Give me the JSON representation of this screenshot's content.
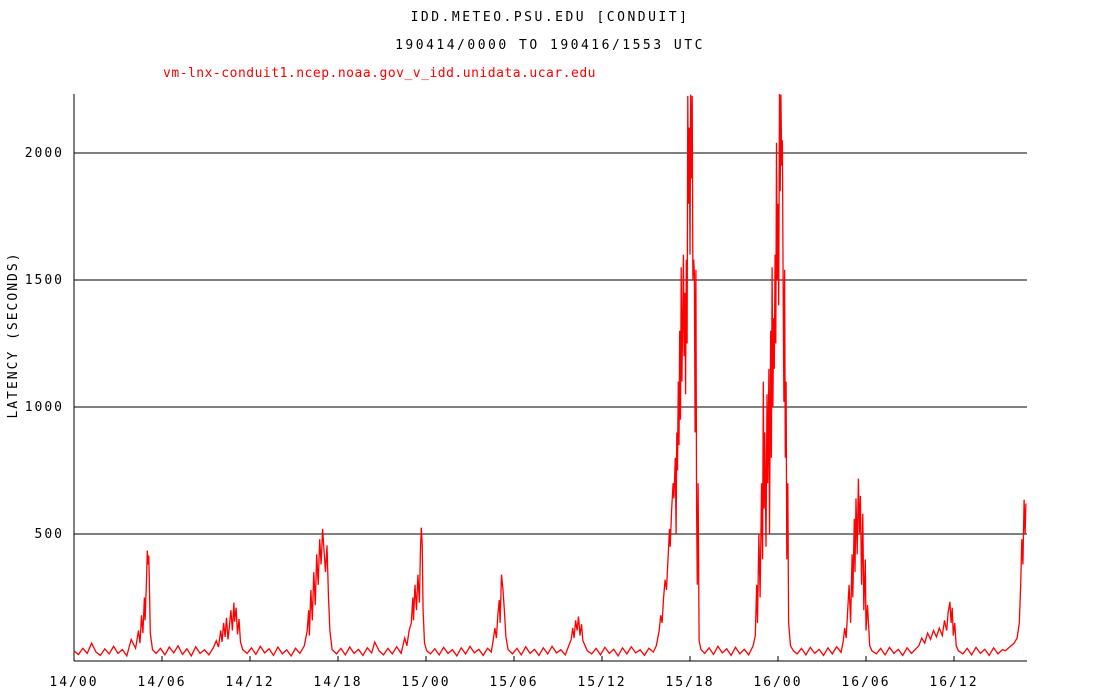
{
  "header": {
    "title": "IDD.METEO.PSU.EDU [CONDUIT]",
    "subtitle": "190414/0000 TO 190416/1553 UTC"
  },
  "legend": {
    "host_label": "vm-lnx-conduit1.ncep.noaa.gov_v_idd.unidata.ucar.edu",
    "color": "#ff0000"
  },
  "chart_data": {
    "type": "line",
    "title": "IDD.METEO.PSU.EDU [CONDUIT]",
    "subtitle": "190414/0000 TO 190416/1553 UTC",
    "series_name": "vm-lnx-conduit1.ncep.noaa.gov_v_idd.unidata.ucar.edu",
    "line_color": "#ff0000",
    "axis_color": "#000000",
    "background": "#ffffff",
    "xlabel": "",
    "ylabel": "LATENCY (SECONDS)",
    "grid": "horizontal",
    "legend_position": "top-left",
    "xlim_hours": [
      0,
      65
    ],
    "ylim": [
      0,
      2232
    ],
    "y_ticks": [
      500,
      1000,
      1500,
      2000
    ],
    "x_tick_hours": [
      0,
      6,
      12,
      18,
      24,
      30,
      36,
      42,
      48,
      54,
      60
    ],
    "x_tick_labels": [
      "14/00",
      "14/06",
      "14/12",
      "14/18",
      "15/00",
      "15/06",
      "15/12",
      "15/18",
      "16/00",
      "16/06",
      "16/12"
    ],
    "points": [
      [
        0,
        40
      ],
      [
        0.3,
        25
      ],
      [
        0.6,
        50
      ],
      [
        0.9,
        30
      ],
      [
        1.2,
        70
      ],
      [
        1.5,
        35
      ],
      [
        1.8,
        22
      ],
      [
        2.1,
        48
      ],
      [
        2.4,
        28
      ],
      [
        2.7,
        58
      ],
      [
        3.0,
        30
      ],
      [
        3.3,
        45
      ],
      [
        3.6,
        20
      ],
      [
        3.9,
        85
      ],
      [
        4.2,
        50
      ],
      [
        4.4,
        120
      ],
      [
        4.5,
        70
      ],
      [
        4.6,
        180
      ],
      [
        4.7,
        110
      ],
      [
        4.8,
        250
      ],
      [
        4.85,
        160
      ],
      [
        4.95,
        330
      ],
      [
        5.0,
        435
      ],
      [
        5.05,
        380
      ],
      [
        5.1,
        415
      ],
      [
        5.15,
        280
      ],
      [
        5.2,
        110
      ],
      [
        5.35,
        45
      ],
      [
        5.6,
        30
      ],
      [
        5.9,
        50
      ],
      [
        6.2,
        24
      ],
      [
        6.5,
        55
      ],
      [
        6.8,
        32
      ],
      [
        7.1,
        60
      ],
      [
        7.4,
        26
      ],
      [
        7.7,
        48
      ],
      [
        8.0,
        20
      ],
      [
        8.3,
        56
      ],
      [
        8.6,
        30
      ],
      [
        8.9,
        44
      ],
      [
        9.2,
        24
      ],
      [
        9.5,
        52
      ],
      [
        9.7,
        80
      ],
      [
        9.85,
        55
      ],
      [
        10.0,
        120
      ],
      [
        10.1,
        75
      ],
      [
        10.2,
        150
      ],
      [
        10.3,
        95
      ],
      [
        10.4,
        170
      ],
      [
        10.5,
        85
      ],
      [
        10.6,
        140
      ],
      [
        10.7,
        200
      ],
      [
        10.8,
        120
      ],
      [
        10.9,
        230
      ],
      [
        10.95,
        155
      ],
      [
        11.05,
        210
      ],
      [
        11.15,
        105
      ],
      [
        11.25,
        165
      ],
      [
        11.35,
        75
      ],
      [
        11.5,
        45
      ],
      [
        11.8,
        30
      ],
      [
        12.1,
        52
      ],
      [
        12.4,
        26
      ],
      [
        12.7,
        58
      ],
      [
        13.0,
        32
      ],
      [
        13.3,
        48
      ],
      [
        13.6,
        22
      ],
      [
        13.9,
        55
      ],
      [
        14.2,
        28
      ],
      [
        14.5,
        44
      ],
      [
        14.8,
        20
      ],
      [
        15.1,
        50
      ],
      [
        15.4,
        30
      ],
      [
        15.7,
        60
      ],
      [
        15.9,
        120
      ],
      [
        16.0,
        200
      ],
      [
        16.05,
        100
      ],
      [
        16.15,
        280
      ],
      [
        16.25,
        160
      ],
      [
        16.35,
        350
      ],
      [
        16.45,
        220
      ],
      [
        16.55,
        420
      ],
      [
        16.65,
        300
      ],
      [
        16.75,
        480
      ],
      [
        16.85,
        380
      ],
      [
        16.95,
        520
      ],
      [
        17.05,
        430
      ],
      [
        17.15,
        350
      ],
      [
        17.25,
        455
      ],
      [
        17.35,
        250
      ],
      [
        17.45,
        120
      ],
      [
        17.6,
        45
      ],
      [
        17.9,
        28
      ],
      [
        18.2,
        50
      ],
      [
        18.5,
        24
      ],
      [
        18.8,
        55
      ],
      [
        19.1,
        30
      ],
      [
        19.4,
        46
      ],
      [
        19.7,
        22
      ],
      [
        20.0,
        52
      ],
      [
        20.3,
        32
      ],
      [
        20.5,
        75
      ],
      [
        20.8,
        40
      ],
      [
        21.1,
        24
      ],
      [
        21.4,
        50
      ],
      [
        21.7,
        28
      ],
      [
        22.0,
        56
      ],
      [
        22.3,
        30
      ],
      [
        22.55,
        90
      ],
      [
        22.7,
        60
      ],
      [
        22.85,
        120
      ],
      [
        23.0,
        150
      ],
      [
        23.1,
        250
      ],
      [
        23.15,
        160
      ],
      [
        23.25,
        300
      ],
      [
        23.35,
        200
      ],
      [
        23.45,
        340
      ],
      [
        23.55,
        230
      ],
      [
        23.62,
        430
      ],
      [
        23.68,
        525
      ],
      [
        23.74,
        460
      ],
      [
        23.8,
        200
      ],
      [
        23.9,
        70
      ],
      [
        24.05,
        40
      ],
      [
        24.3,
        28
      ],
      [
        24.6,
        48
      ],
      [
        24.9,
        24
      ],
      [
        25.2,
        54
      ],
      [
        25.5,
        30
      ],
      [
        25.8,
        45
      ],
      [
        26.1,
        20
      ],
      [
        26.4,
        52
      ],
      [
        26.7,
        28
      ],
      [
        27.0,
        58
      ],
      [
        27.3,
        32
      ],
      [
        27.6,
        46
      ],
      [
        27.9,
        22
      ],
      [
        28.2,
        50
      ],
      [
        28.45,
        35
      ],
      [
        28.6,
        90
      ],
      [
        28.7,
        130
      ],
      [
        28.8,
        90
      ],
      [
        28.9,
        185
      ],
      [
        29.0,
        240
      ],
      [
        29.05,
        150
      ],
      [
        29.15,
        340
      ],
      [
        29.25,
        280
      ],
      [
        29.35,
        190
      ],
      [
        29.45,
        95
      ],
      [
        29.6,
        45
      ],
      [
        29.9,
        28
      ],
      [
        30.2,
        50
      ],
      [
        30.5,
        24
      ],
      [
        30.8,
        56
      ],
      [
        31.1,
        30
      ],
      [
        31.4,
        46
      ],
      [
        31.7,
        22
      ],
      [
        32.0,
        52
      ],
      [
        32.3,
        28
      ],
      [
        32.6,
        58
      ],
      [
        32.9,
        32
      ],
      [
        33.2,
        44
      ],
      [
        33.5,
        24
      ],
      [
        33.7,
        55
      ],
      [
        33.9,
        85
      ],
      [
        34.0,
        130
      ],
      [
        34.1,
        90
      ],
      [
        34.2,
        160
      ],
      [
        34.3,
        120
      ],
      [
        34.4,
        175
      ],
      [
        34.5,
        100
      ],
      [
        34.6,
        145
      ],
      [
        34.7,
        80
      ],
      [
        34.85,
        60
      ],
      [
        35.0,
        40
      ],
      [
        35.3,
        28
      ],
      [
        35.6,
        50
      ],
      [
        35.9,
        24
      ],
      [
        36.2,
        54
      ],
      [
        36.5,
        30
      ],
      [
        36.8,
        46
      ],
      [
        37.1,
        20
      ],
      [
        37.4,
        52
      ],
      [
        37.7,
        28
      ],
      [
        38.0,
        56
      ],
      [
        38.3,
        32
      ],
      [
        38.6,
        44
      ],
      [
        38.9,
        22
      ],
      [
        39.2,
        50
      ],
      [
        39.5,
        35
      ],
      [
        39.7,
        60
      ],
      [
        39.9,
        120
      ],
      [
        40.0,
        180
      ],
      [
        40.1,
        150
      ],
      [
        40.2,
        250
      ],
      [
        40.3,
        320
      ],
      [
        40.4,
        280
      ],
      [
        40.5,
        400
      ],
      [
        40.6,
        520
      ],
      [
        40.65,
        450
      ],
      [
        40.75,
        600
      ],
      [
        40.85,
        700
      ],
      [
        40.9,
        640
      ],
      [
        41.0,
        800
      ],
      [
        41.05,
        500
      ],
      [
        41.1,
        900
      ],
      [
        41.15,
        750
      ],
      [
        41.2,
        1100
      ],
      [
        41.25,
        850
      ],
      [
        41.3,
        1300
      ],
      [
        41.35,
        950
      ],
      [
        41.4,
        1550
      ],
      [
        41.45,
        1100
      ],
      [
        41.5,
        1350
      ],
      [
        41.55,
        1600
      ],
      [
        41.6,
        1200
      ],
      [
        41.65,
        1450
      ],
      [
        41.7,
        1050
      ],
      [
        41.75,
        1580
      ],
      [
        41.8,
        1250
      ],
      [
        41.85,
        2225
      ],
      [
        41.9,
        1800
      ],
      [
        41.95,
        2100
      ],
      [
        42.0,
        1600
      ],
      [
        42.05,
        2230
      ],
      [
        42.1,
        1900
      ],
      [
        42.15,
        2225
      ],
      [
        42.2,
        1500
      ],
      [
        42.25,
        1580
      ],
      [
        42.3,
        1520
      ],
      [
        42.35,
        900
      ],
      [
        42.4,
        1540
      ],
      [
        42.45,
        600
      ],
      [
        42.5,
        300
      ],
      [
        42.55,
        700
      ],
      [
        42.62,
        80
      ],
      [
        42.75,
        45
      ],
      [
        43.0,
        30
      ],
      [
        43.3,
        52
      ],
      [
        43.6,
        26
      ],
      [
        43.9,
        58
      ],
      [
        44.2,
        32
      ],
      [
        44.5,
        48
      ],
      [
        44.8,
        22
      ],
      [
        45.1,
        54
      ],
      [
        45.4,
        28
      ],
      [
        45.7,
        46
      ],
      [
        46.0,
        24
      ],
      [
        46.3,
        60
      ],
      [
        46.45,
        100
      ],
      [
        46.55,
        300
      ],
      [
        46.6,
        150
      ],
      [
        46.7,
        500
      ],
      [
        46.78,
        250
      ],
      [
        46.88,
        700
      ],
      [
        46.95,
        400
      ],
      [
        47.0,
        1100
      ],
      [
        47.05,
        600
      ],
      [
        47.1,
        900
      ],
      [
        47.18,
        450
      ],
      [
        47.25,
        1050
      ],
      [
        47.3,
        700
      ],
      [
        47.38,
        1150
      ],
      [
        47.42,
        500
      ],
      [
        47.5,
        1300
      ],
      [
        47.55,
        800
      ],
      [
        47.6,
        1550
      ],
      [
        47.65,
        1000
      ],
      [
        47.7,
        1350
      ],
      [
        47.75,
        1150
      ],
      [
        47.8,
        1600
      ],
      [
        47.85,
        1250
      ],
      [
        47.9,
        2040
      ],
      [
        47.95,
        1500
      ],
      [
        48.0,
        1800
      ],
      [
        48.05,
        1400
      ],
      [
        48.1,
        2235
      ],
      [
        48.15,
        1850
      ],
      [
        48.2,
        2230
      ],
      [
        48.25,
        1950
      ],
      [
        48.3,
        2050
      ],
      [
        48.35,
        1500
      ],
      [
        48.4,
        1020
      ],
      [
        48.45,
        1540
      ],
      [
        48.5,
        800
      ],
      [
        48.55,
        1100
      ],
      [
        48.6,
        400
      ],
      [
        48.67,
        700
      ],
      [
        48.72,
        150
      ],
      [
        48.85,
        60
      ],
      [
        49.05,
        40
      ],
      [
        49.3,
        28
      ],
      [
        49.6,
        50
      ],
      [
        49.9,
        24
      ],
      [
        50.2,
        54
      ],
      [
        50.5,
        30
      ],
      [
        50.8,
        46
      ],
      [
        51.1,
        22
      ],
      [
        51.4,
        52
      ],
      [
        51.7,
        28
      ],
      [
        52.0,
        56
      ],
      [
        52.3,
        34
      ],
      [
        52.45,
        80
      ],
      [
        52.55,
        130
      ],
      [
        52.65,
        90
      ],
      [
        52.75,
        200
      ],
      [
        52.85,
        300
      ],
      [
        52.95,
        150
      ],
      [
        53.05,
        420
      ],
      [
        53.1,
        250
      ],
      [
        53.2,
        560
      ],
      [
        53.25,
        350
      ],
      [
        53.32,
        640
      ],
      [
        53.4,
        420
      ],
      [
        53.48,
        718
      ],
      [
        53.55,
        500
      ],
      [
        53.62,
        650
      ],
      [
        53.7,
        300
      ],
      [
        53.78,
        580
      ],
      [
        53.85,
        200
      ],
      [
        53.95,
        400
      ],
      [
        54.0,
        120
      ],
      [
        54.1,
        220
      ],
      [
        54.25,
        60
      ],
      [
        54.4,
        40
      ],
      [
        54.7,
        28
      ],
      [
        55.0,
        50
      ],
      [
        55.3,
        24
      ],
      [
        55.6,
        54
      ],
      [
        55.9,
        30
      ],
      [
        56.2,
        46
      ],
      [
        56.5,
        22
      ],
      [
        56.8,
        52
      ],
      [
        57.1,
        30
      ],
      [
        57.4,
        48
      ],
      [
        57.6,
        60
      ],
      [
        57.8,
        90
      ],
      [
        58.0,
        70
      ],
      [
        58.2,
        110
      ],
      [
        58.4,
        85
      ],
      [
        58.6,
        120
      ],
      [
        58.8,
        95
      ],
      [
        59.0,
        130
      ],
      [
        59.2,
        100
      ],
      [
        59.35,
        160
      ],
      [
        59.5,
        120
      ],
      [
        59.6,
        190
      ],
      [
        59.72,
        233
      ],
      [
        59.8,
        150
      ],
      [
        59.88,
        210
      ],
      [
        59.95,
        100
      ],
      [
        60.05,
        150
      ],
      [
        60.15,
        60
      ],
      [
        60.3,
        40
      ],
      [
        60.6,
        28
      ],
      [
        60.9,
        50
      ],
      [
        61.2,
        24
      ],
      [
        61.5,
        54
      ],
      [
        61.8,
        30
      ],
      [
        62.1,
        46
      ],
      [
        62.4,
        22
      ],
      [
        62.7,
        52
      ],
      [
        63.0,
        28
      ],
      [
        63.3,
        45
      ],
      [
        63.5,
        40
      ],
      [
        63.8,
        55
      ],
      [
        64.1,
        70
      ],
      [
        64.3,
        90
      ],
      [
        64.45,
        150
      ],
      [
        64.55,
        300
      ],
      [
        64.62,
        480
      ],
      [
        64.7,
        380
      ],
      [
        64.78,
        635
      ],
      [
        64.85,
        500
      ],
      [
        64.9,
        620
      ]
    ]
  }
}
